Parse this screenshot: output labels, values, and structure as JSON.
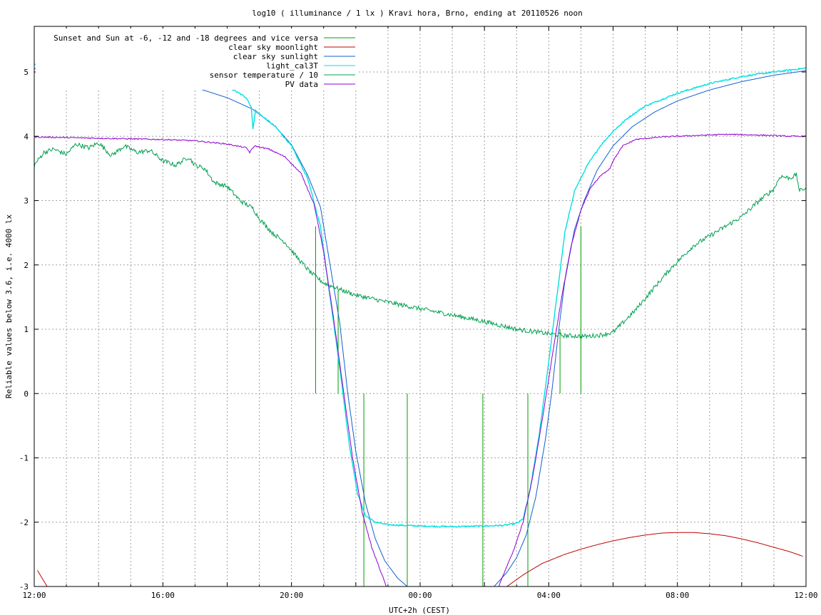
{
  "chart_data": {
    "type": "line",
    "title": "log10 ( illuminance / 1 lx ) Kravi hora, Brno, ending at 20110526 noon",
    "xlabel": "UTC+2h (CEST)",
    "ylabel": "Reliable values below 3.6, i.e. 4000 lx",
    "xlim": [
      0,
      24
    ],
    "ylim": [
      -3,
      5.5
    ],
    "grid": true,
    "legend_position": "top-left",
    "x_ticks": [
      {
        "v": 0,
        "label": "12:00"
      },
      {
        "v": 4,
        "label": "16:00"
      },
      {
        "v": 8,
        "label": "20:00"
      },
      {
        "v": 12,
        "label": "00:00"
      },
      {
        "v": 16,
        "label": "04:00"
      },
      {
        "v": 20,
        "label": "08:00"
      },
      {
        "v": 24,
        "label": "12:00"
      }
    ],
    "y_ticks": [
      {
        "v": -3,
        "label": "-3"
      },
      {
        "v": -2,
        "label": "-2"
      },
      {
        "v": -1,
        "label": "-1"
      },
      {
        "v": 0,
        "label": "0"
      },
      {
        "v": 1,
        "label": "1"
      },
      {
        "v": 2,
        "label": "2"
      },
      {
        "v": 3,
        "label": "3"
      },
      {
        "v": 4,
        "label": "4"
      },
      {
        "v": 5,
        "label": "5"
      }
    ],
    "series": [
      {
        "name": "Sunset and Sun at -6, -12 and -18 degrees and vice versa",
        "color": "#00a000",
        "kind": "impulses",
        "impulses": [
          {
            "x": 8.75,
            "y": 2.6
          },
          {
            "x": 9.45,
            "y": 1.6
          },
          {
            "x": 10.25,
            "y": 0
          },
          {
            "x": 11.6,
            "y": 0
          },
          {
            "x": 13.95,
            "y": 0
          },
          {
            "x": 15.35,
            "y": 0
          },
          {
            "x": 16.35,
            "y": 1.0
          },
          {
            "x": 17.0,
            "y": 2.6
          }
        ]
      },
      {
        "name": "clear sky moonlight",
        "color": "#c00000",
        "kind": "line",
        "points": [
          [
            0.1,
            -2.75
          ],
          [
            0.4,
            -3.0
          ],
          [
            14.7,
            -3.0
          ],
          [
            15.2,
            -2.82
          ],
          [
            15.8,
            -2.64
          ],
          [
            16.5,
            -2.5
          ],
          [
            17.0,
            -2.42
          ],
          [
            17.5,
            -2.35
          ],
          [
            18.0,
            -2.29
          ],
          [
            18.5,
            -2.24
          ],
          [
            19.0,
            -2.2
          ],
          [
            19.5,
            -2.17
          ],
          [
            20.0,
            -2.16
          ],
          [
            20.5,
            -2.16
          ],
          [
            21.0,
            -2.18
          ],
          [
            21.5,
            -2.21
          ],
          [
            22.0,
            -2.26
          ],
          [
            22.5,
            -2.32
          ],
          [
            23.0,
            -2.39
          ],
          [
            23.5,
            -2.46
          ],
          [
            23.9,
            -2.53
          ]
        ]
      },
      {
        "name": "clear sky sunlight",
        "color": "#1060d0",
        "kind": "line",
        "points": [
          [
            0,
            5.05
          ],
          [
            1,
            5.04
          ],
          [
            2,
            5.0
          ],
          [
            3,
            4.94
          ],
          [
            4,
            4.86
          ],
          [
            5,
            4.76
          ],
          [
            6,
            4.6
          ],
          [
            6.8,
            4.42
          ],
          [
            7.5,
            4.15
          ],
          [
            8.0,
            3.87
          ],
          [
            8.5,
            3.4
          ],
          [
            8.9,
            2.9
          ],
          [
            9.2,
            2.0
          ],
          [
            9.5,
            1.1
          ],
          [
            9.75,
            0.0
          ],
          [
            10.0,
            -0.9
          ],
          [
            10.3,
            -1.7
          ],
          [
            10.6,
            -2.25
          ],
          [
            10.9,
            -2.6
          ],
          [
            11.3,
            -2.87
          ],
          [
            11.6,
            -3.0
          ],
          [
            14.3,
            -3.0
          ],
          [
            14.7,
            -2.78
          ],
          [
            15.0,
            -2.55
          ],
          [
            15.3,
            -2.2
          ],
          [
            15.6,
            -1.6
          ],
          [
            15.9,
            -0.7
          ],
          [
            16.1,
            0.05
          ],
          [
            16.3,
            0.95
          ],
          [
            16.5,
            1.75
          ],
          [
            16.8,
            2.55
          ],
          [
            17.1,
            3.0
          ],
          [
            17.5,
            3.47
          ],
          [
            18.0,
            3.85
          ],
          [
            18.6,
            4.15
          ],
          [
            19.3,
            4.38
          ],
          [
            20.0,
            4.55
          ],
          [
            21.0,
            4.72
          ],
          [
            22.0,
            4.85
          ],
          [
            23.0,
            4.95
          ],
          [
            24.0,
            5.02
          ]
        ]
      },
      {
        "name": "light_cal3T",
        "color": "#00e0e0",
        "kind": "line",
        "noise": 0.012,
        "points": [
          [
            0,
            5.12
          ],
          [
            1,
            5.1
          ],
          [
            2,
            5.06
          ],
          [
            3,
            5.02
          ],
          [
            4,
            4.97
          ],
          [
            5,
            4.9
          ],
          [
            6,
            4.78
          ],
          [
            6.6,
            4.6
          ],
          [
            6.75,
            4.45
          ],
          [
            6.8,
            4.12
          ],
          [
            6.88,
            4.4
          ],
          [
            7.0,
            4.35
          ],
          [
            7.5,
            4.15
          ],
          [
            8.0,
            3.85
          ],
          [
            8.5,
            3.35
          ],
          [
            8.9,
            2.6
          ],
          [
            9.2,
            1.5
          ],
          [
            9.5,
            0.4
          ],
          [
            9.8,
            -0.8
          ],
          [
            10.05,
            -1.55
          ],
          [
            10.3,
            -1.9
          ],
          [
            10.6,
            -2.0
          ],
          [
            11.0,
            -2.04
          ],
          [
            12.0,
            -2.06
          ],
          [
            13.0,
            -2.07
          ],
          [
            14.0,
            -2.06
          ],
          [
            14.6,
            -2.05
          ],
          [
            15.0,
            -2.02
          ],
          [
            15.2,
            -1.95
          ],
          [
            15.4,
            -1.55
          ],
          [
            15.7,
            -0.65
          ],
          [
            16.0,
            0.5
          ],
          [
            16.3,
            1.7
          ],
          [
            16.5,
            2.5
          ],
          [
            16.8,
            3.15
          ],
          [
            17.2,
            3.55
          ],
          [
            17.6,
            3.85
          ],
          [
            18.0,
            4.08
          ],
          [
            18.5,
            4.3
          ],
          [
            19.0,
            4.47
          ],
          [
            20.0,
            4.67
          ],
          [
            21.0,
            4.82
          ],
          [
            22.0,
            4.93
          ],
          [
            23.0,
            5.0
          ],
          [
            24.0,
            5.06
          ]
        ]
      },
      {
        "name": "sensor temperature / 10",
        "color": "#00a050",
        "kind": "line",
        "noise": 0.035,
        "points": [
          [
            0,
            3.55
          ],
          [
            0.3,
            3.75
          ],
          [
            0.6,
            3.8
          ],
          [
            1.0,
            3.72
          ],
          [
            1.3,
            3.88
          ],
          [
            1.7,
            3.82
          ],
          [
            2.0,
            3.9
          ],
          [
            2.4,
            3.7
          ],
          [
            2.8,
            3.85
          ],
          [
            3.2,
            3.75
          ],
          [
            3.6,
            3.78
          ],
          [
            4.0,
            3.62
          ],
          [
            4.4,
            3.55
          ],
          [
            4.8,
            3.68
          ],
          [
            5.0,
            3.55
          ],
          [
            5.3,
            3.5
          ],
          [
            5.6,
            3.28
          ],
          [
            6.0,
            3.22
          ],
          [
            6.4,
            3.0
          ],
          [
            6.8,
            2.88
          ],
          [
            7.0,
            2.72
          ],
          [
            7.4,
            2.5
          ],
          [
            7.8,
            2.35
          ],
          [
            8.2,
            2.1
          ],
          [
            8.6,
            1.88
          ],
          [
            9.0,
            1.72
          ],
          [
            9.5,
            1.62
          ],
          [
            10.0,
            1.53
          ],
          [
            11.0,
            1.42
          ],
          [
            12.0,
            1.32
          ],
          [
            13.0,
            1.22
          ],
          [
            14.0,
            1.12
          ],
          [
            15.0,
            1.0
          ],
          [
            16.0,
            0.93
          ],
          [
            16.5,
            0.9
          ],
          [
            17.2,
            0.89
          ],
          [
            17.6,
            0.91
          ],
          [
            18.0,
            0.95
          ],
          [
            18.3,
            1.1
          ],
          [
            18.7,
            1.3
          ],
          [
            19.2,
            1.6
          ],
          [
            19.8,
            1.95
          ],
          [
            20.5,
            2.3
          ],
          [
            21.0,
            2.45
          ],
          [
            21.5,
            2.6
          ],
          [
            22.0,
            2.75
          ],
          [
            22.5,
            2.98
          ],
          [
            23.0,
            3.18
          ],
          [
            23.2,
            3.38
          ],
          [
            23.5,
            3.35
          ],
          [
            23.7,
            3.4
          ],
          [
            23.8,
            3.15
          ],
          [
            24.0,
            3.2
          ]
        ]
      },
      {
        "name": "PV data",
        "color": "#9000d0",
        "kind": "line",
        "noise": 0.01,
        "points": [
          [
            0,
            3.99
          ],
          [
            2,
            3.97
          ],
          [
            4,
            3.95
          ],
          [
            5,
            3.93
          ],
          [
            6,
            3.88
          ],
          [
            6.6,
            3.82
          ],
          [
            6.7,
            3.75
          ],
          [
            6.85,
            3.85
          ],
          [
            7.3,
            3.8
          ],
          [
            7.8,
            3.68
          ],
          [
            8.3,
            3.42
          ],
          [
            8.7,
            2.95
          ],
          [
            9.0,
            2.2
          ],
          [
            9.3,
            1.2
          ],
          [
            9.6,
            0.1
          ],
          [
            9.9,
            -1.0
          ],
          [
            10.2,
            -1.85
          ],
          [
            10.5,
            -2.4
          ],
          [
            10.8,
            -2.8
          ],
          [
            10.95,
            -3.0
          ],
          [
            14.45,
            -3.0
          ],
          [
            14.6,
            -2.8
          ],
          [
            14.9,
            -2.45
          ],
          [
            15.2,
            -2.0
          ],
          [
            15.5,
            -1.3
          ],
          [
            15.8,
            -0.4
          ],
          [
            16.1,
            0.55
          ],
          [
            16.4,
            1.5
          ],
          [
            16.7,
            2.3
          ],
          [
            17.0,
            2.85
          ],
          [
            17.3,
            3.2
          ],
          [
            17.6,
            3.38
          ],
          [
            17.9,
            3.5
          ],
          [
            18.0,
            3.62
          ],
          [
            18.3,
            3.85
          ],
          [
            18.7,
            3.95
          ],
          [
            19.5,
            3.99
          ],
          [
            20.5,
            4.01
          ],
          [
            21.5,
            4.03
          ],
          [
            22.5,
            4.02
          ],
          [
            23.5,
            4.0
          ],
          [
            24.0,
            4.0
          ]
        ]
      }
    ]
  }
}
